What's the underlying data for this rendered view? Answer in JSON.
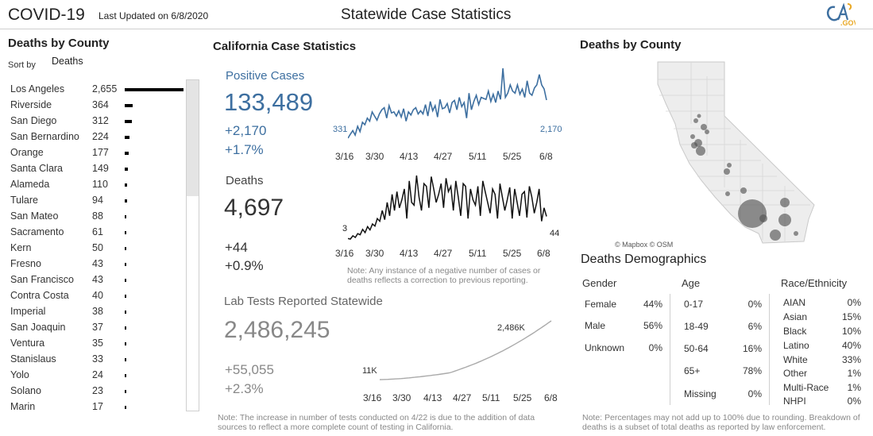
{
  "header": {
    "title": "COVID-19",
    "updated": "Last Updated on 6/8/2020",
    "center_title": "Statewide Case Statistics",
    "logo_text": "CA.GOV"
  },
  "left": {
    "title": "Deaths by County",
    "sort_label": "Sort by",
    "sort_value": "Deaths",
    "counties": [
      {
        "name": "Los Angeles",
        "value": "2,655",
        "n": 2655
      },
      {
        "name": "Riverside",
        "value": "364",
        "n": 364
      },
      {
        "name": "San Diego",
        "value": "312",
        "n": 312
      },
      {
        "name": "San Bernardino",
        "value": "224",
        "n": 224
      },
      {
        "name": "Orange",
        "value": "177",
        "n": 177
      },
      {
        "name": "Santa Clara",
        "value": "149",
        "n": 149
      },
      {
        "name": "Alameda",
        "value": "110",
        "n": 110
      },
      {
        "name": "Tulare",
        "value": "94",
        "n": 94
      },
      {
        "name": "San Mateo",
        "value": "88",
        "n": 88
      },
      {
        "name": "Sacramento",
        "value": "61",
        "n": 61
      },
      {
        "name": "Kern",
        "value": "50",
        "n": 50
      },
      {
        "name": "Fresno",
        "value": "43",
        "n": 43
      },
      {
        "name": "San Francisco",
        "value": "43",
        "n": 43
      },
      {
        "name": "Contra Costa",
        "value": "40",
        "n": 40
      },
      {
        "name": "Imperial",
        "value": "38",
        "n": 38
      },
      {
        "name": "San Joaquin",
        "value": "37",
        "n": 37
      },
      {
        "name": "Ventura",
        "value": "35",
        "n": 35
      },
      {
        "name": "Stanislaus",
        "value": "33",
        "n": 33
      },
      {
        "name": "Yolo",
        "value": "24",
        "n": 24
      },
      {
        "name": "Solano",
        "value": "23",
        "n": 23
      },
      {
        "name": "Marin",
        "value": "17",
        "n": 17
      }
    ]
  },
  "middle": {
    "title": "California Case Statistics",
    "positive": {
      "label": "Positive Cases",
      "total": "133,489",
      "change": "+2,170",
      "pct": "+1.7%",
      "first_label": "331",
      "last_label": "2,170"
    },
    "deaths": {
      "label": "Deaths",
      "total": "4,697",
      "change": "+44",
      "pct": "+0.9%",
      "first_label": "3",
      "last_label": "44"
    },
    "date_ticks": [
      "3/16",
      "3/30",
      "4/13",
      "4/27",
      "5/11",
      "5/25",
      "6/8"
    ],
    "deaths_note": "Note: Any instance of a negative number of cases or deaths reflects a correction to previous reporting.",
    "tests": {
      "label": "Lab Tests Reported Statewide",
      "total": "2,486,245",
      "change": "+55,055",
      "pct": "+2.3%",
      "first_label": "11K",
      "last_label": "2,486K"
    },
    "tests_note": "Note: The increase in number of tests conducted on 4/22 is due to the addition of data sources to reflect a more complete count of testing in California."
  },
  "right": {
    "title": "Deaths by County",
    "map_credit": "© Mapbox © OSM",
    "demo_title": "Deaths Demographics",
    "gender": {
      "header": "Gender",
      "rows": [
        {
          "label": "Female",
          "value": "44%"
        },
        {
          "label": "Male",
          "value": "56%"
        },
        {
          "label": "Unknown",
          "value": "0%"
        }
      ]
    },
    "age": {
      "header": "Age",
      "rows": [
        {
          "label": "0-17",
          "value": "0%"
        },
        {
          "label": "18-49",
          "value": "6%"
        },
        {
          "label": "50-64",
          "value": "16%"
        },
        {
          "label": "65+",
          "value": "78%"
        },
        {
          "label": "Missing",
          "value": "0%"
        }
      ]
    },
    "race": {
      "header": "Race/Ethnicity",
      "rows": [
        {
          "label": "AIAN",
          "value": "0%"
        },
        {
          "label": "Asian",
          "value": "15%"
        },
        {
          "label": "Black",
          "value": "10%"
        },
        {
          "label": "Latino",
          "value": "40%"
        },
        {
          "label": "White",
          "value": "33%"
        },
        {
          "label": "Other",
          "value": "1%"
        },
        {
          "label": "Multi-Race",
          "value": "1%"
        },
        {
          "label": "NHPI",
          "value": "0%"
        }
      ]
    },
    "note": "Note: Percentages may not add up to 100% due to rounding. Breakdown of deaths is a subset of total deaths as reported by law enforcement."
  },
  "colors": {
    "accent_blue": "#3d6fa0",
    "bar": "#000000",
    "muted": "#888888"
  }
}
